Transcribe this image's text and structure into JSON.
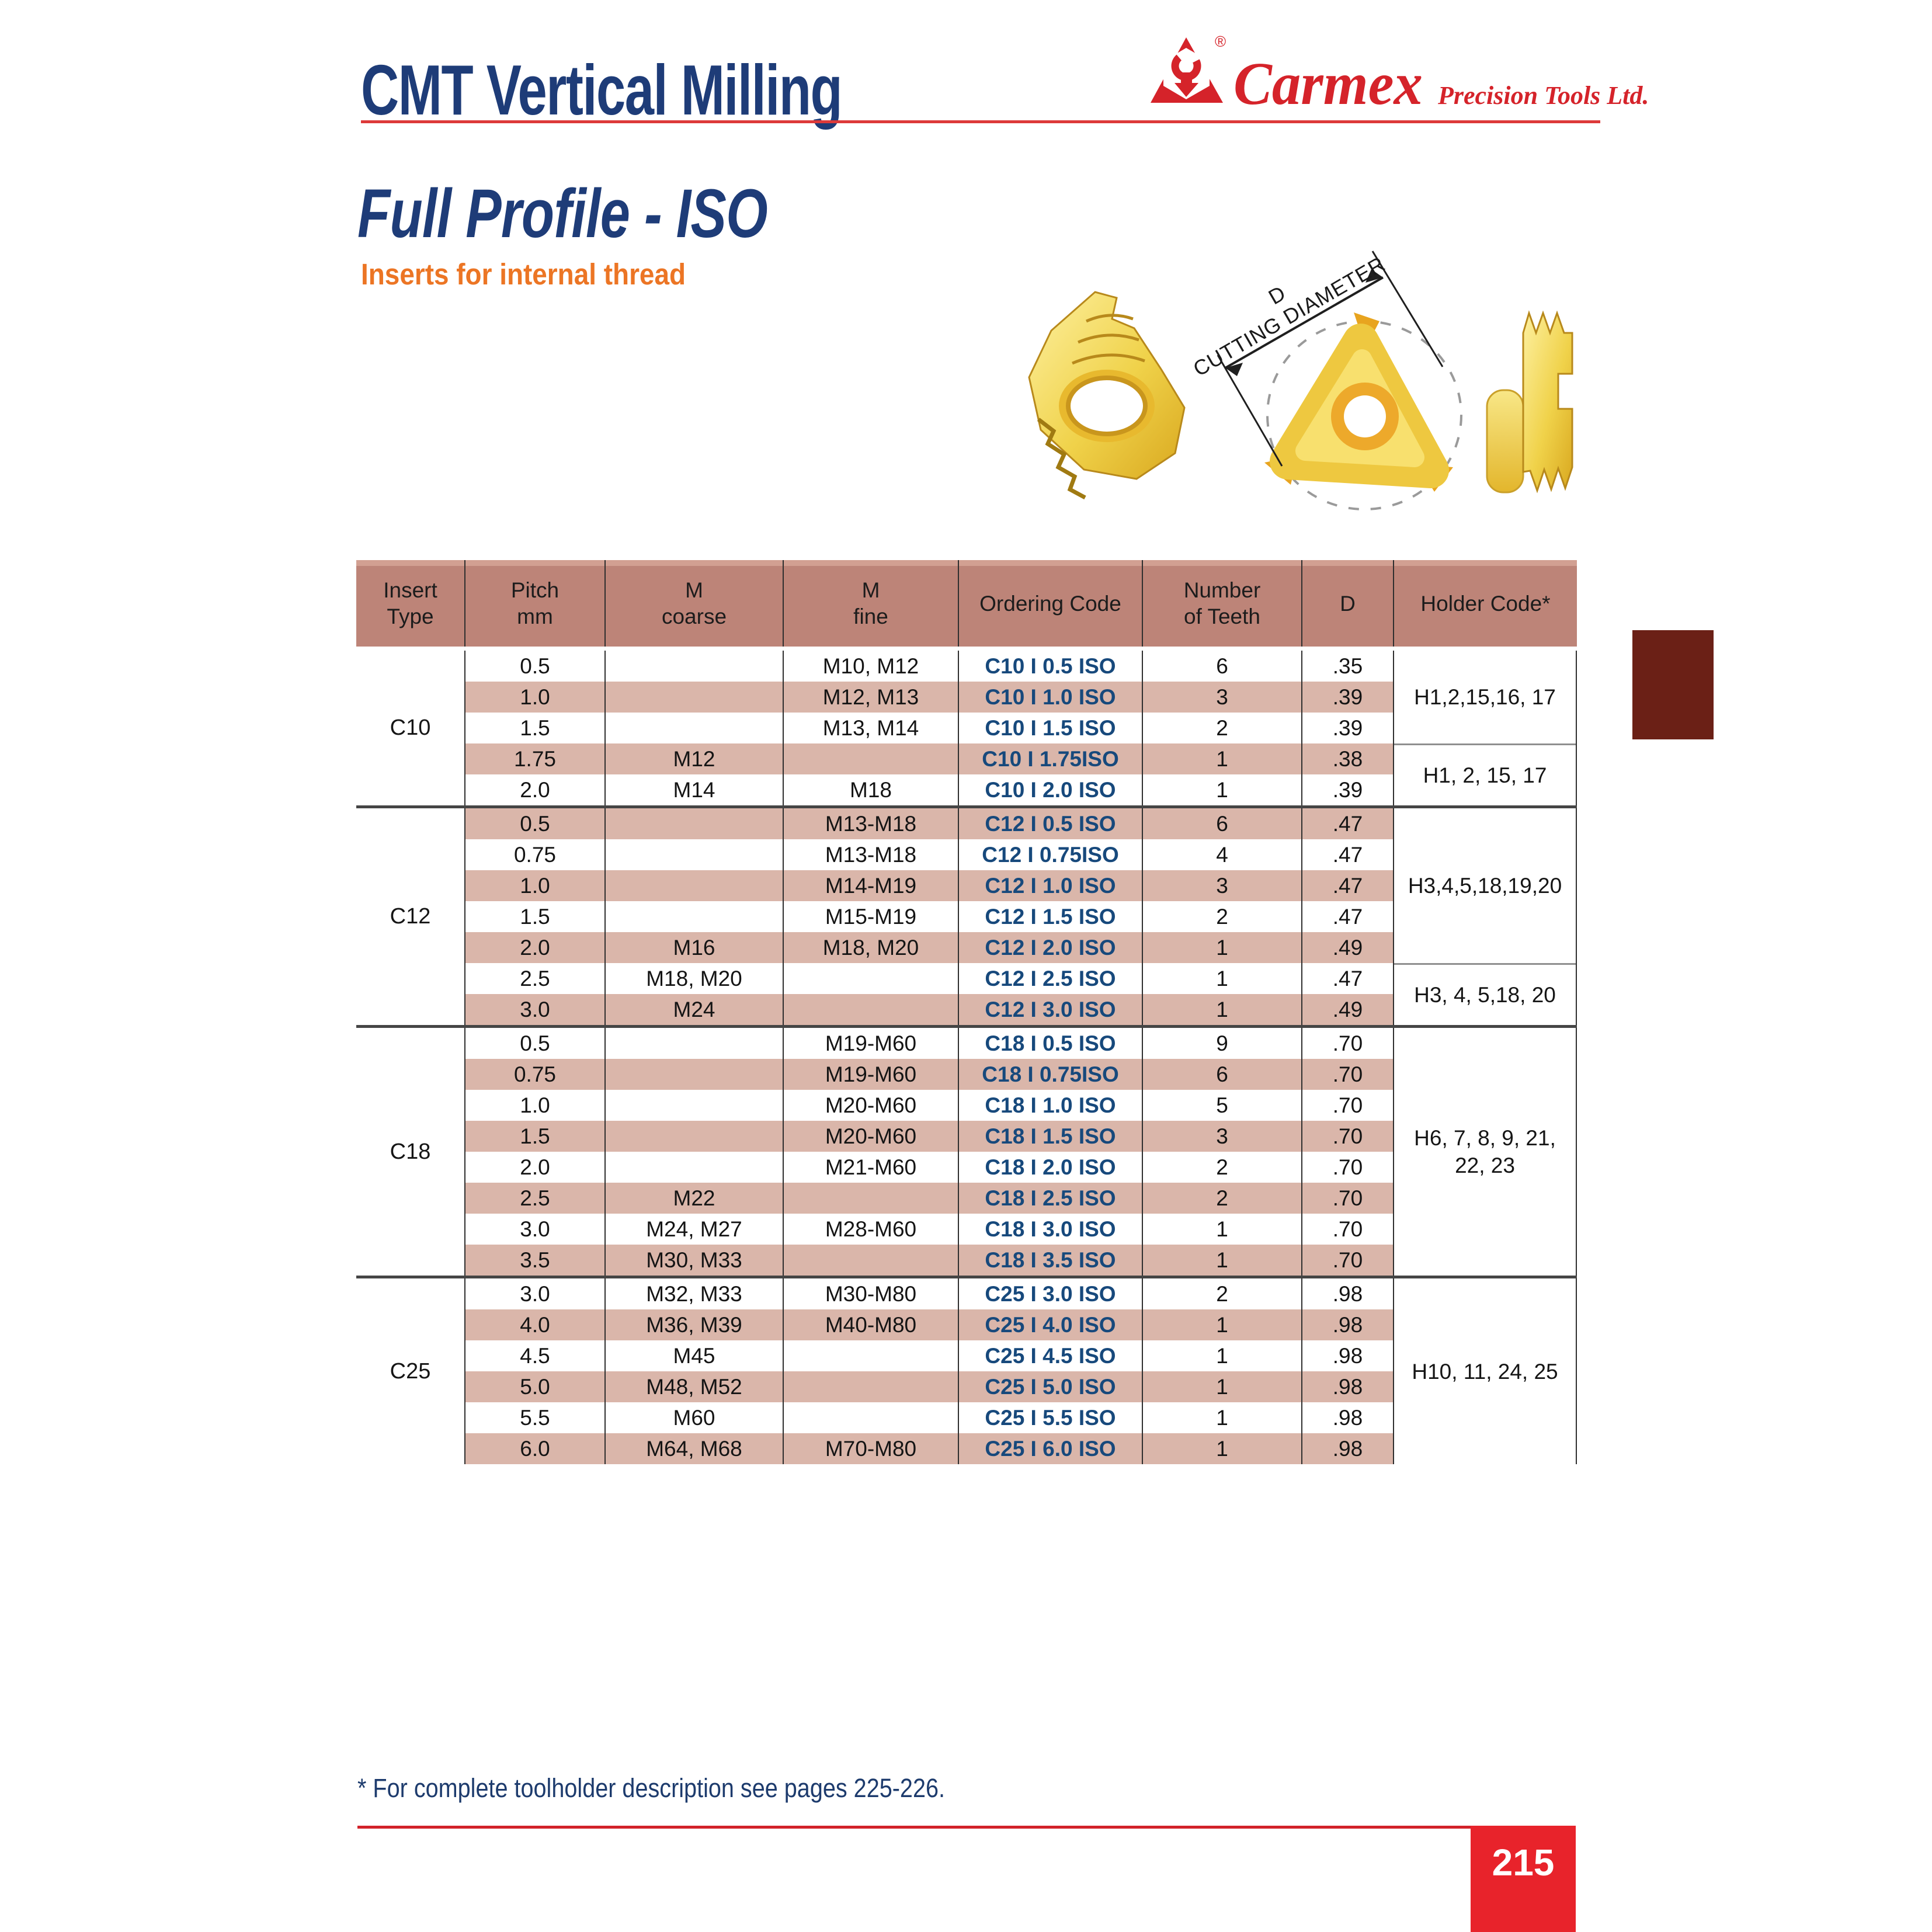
{
  "page": {
    "title": "CMT Vertical Milling"
  },
  "brand": {
    "name": "Carmex",
    "tagline": "Precision Tools Ltd.",
    "registered_mark": "®"
  },
  "hero": {
    "title": "Full Profile - ISO",
    "subtitle": "Inserts for internal thread"
  },
  "diagram": {
    "dim_letter": "D",
    "dim_label": "CUTTING DIAMETER"
  },
  "footer": {
    "footnote": "* For complete toolholder description see pages 225-226.",
    "page_number": "215"
  },
  "colors": {
    "navy": "#1e3c78",
    "orange": "#ec7524",
    "brand_red": "#d5232a",
    "header_bg": "#bd8478",
    "row_pink": "#dab6aa",
    "code_blue": "#17497c",
    "maroon_square": "#6b2016",
    "page_box_red": "#e8232b"
  },
  "table": {
    "headers": [
      [
        "Insert",
        "Type"
      ],
      [
        "Pitch",
        "mm"
      ],
      [
        "M",
        "coarse"
      ],
      [
        "M",
        "fine"
      ],
      [
        "Ordering Code"
      ],
      [
        "Number",
        "of Teeth"
      ],
      [
        "D"
      ],
      [
        "Holder Code*"
      ]
    ],
    "sections": [
      {
        "insert_type": "C10",
        "rows": [
          {
            "pitch": "0.5",
            "m_coarse": "",
            "m_fine": "M10, M12",
            "code": "C10 I 0.5  ISO",
            "teeth": "6",
            "d": ".35"
          },
          {
            "pitch": "1.0",
            "m_coarse": "",
            "m_fine": "M12, M13",
            "code": "C10 I 1.0  ISO",
            "teeth": "3",
            "d": ".39"
          },
          {
            "pitch": "1.5",
            "m_coarse": "",
            "m_fine": "M13, M14",
            "code": "C10 I 1.5  ISO",
            "teeth": "2",
            "d": ".39"
          },
          {
            "pitch": "1.75",
            "m_coarse": "M12",
            "m_fine": "",
            "code": "C10 I 1.75ISO",
            "teeth": "1",
            "d": ".38"
          },
          {
            "pitch": "2.0",
            "m_coarse": "M14",
            "m_fine": "M18",
            "code": "C10 I 2.0  ISO",
            "teeth": "1",
            "d": ".39"
          }
        ],
        "holder_groups": [
          {
            "rows": 3,
            "lines": [
              "H1,2,15,16, 17"
            ]
          },
          {
            "rows": 2,
            "lines": [
              "H1, 2, 15, 17"
            ]
          }
        ]
      },
      {
        "insert_type": "C12",
        "rows": [
          {
            "pitch": "0.5",
            "m_coarse": "",
            "m_fine": "M13-M18",
            "code": "C12 I 0.5  ISO",
            "teeth": "6",
            "d": ".47"
          },
          {
            "pitch": "0.75",
            "m_coarse": "",
            "m_fine": "M13-M18",
            "code": "C12 I 0.75ISO",
            "teeth": "4",
            "d": ".47"
          },
          {
            "pitch": "1.0",
            "m_coarse": "",
            "m_fine": "M14-M19",
            "code": "C12 I 1.0  ISO",
            "teeth": "3",
            "d": ".47"
          },
          {
            "pitch": "1.5",
            "m_coarse": "",
            "m_fine": "M15-M19",
            "code": "C12 I 1.5  ISO",
            "teeth": "2",
            "d": ".47"
          },
          {
            "pitch": "2.0",
            "m_coarse": "M16",
            "m_fine": "M18, M20",
            "code": "C12 I 2.0  ISO",
            "teeth": "1",
            "d": ".49"
          },
          {
            "pitch": "2.5",
            "m_coarse": "M18, M20",
            "m_fine": "",
            "code": "C12 I 2.5  ISO",
            "teeth": "1",
            "d": ".47"
          },
          {
            "pitch": "3.0",
            "m_coarse": "M24",
            "m_fine": "",
            "code": "C12 I 3.0  ISO",
            "teeth": "1",
            "d": ".49"
          }
        ],
        "holder_groups": [
          {
            "rows": 5,
            "lines": [
              "H3,4,5,18,19,20"
            ]
          },
          {
            "rows": 2,
            "lines": [
              "H3, 4, 5,18, 20"
            ]
          }
        ]
      },
      {
        "insert_type": "C18",
        "rows": [
          {
            "pitch": "0.5",
            "m_coarse": "",
            "m_fine": "M19-M60",
            "code": "C18 I 0.5  ISO",
            "teeth": "9",
            "d": ".70"
          },
          {
            "pitch": "0.75",
            "m_coarse": "",
            "m_fine": "M19-M60",
            "code": "C18 I 0.75ISO",
            "teeth": "6",
            "d": ".70"
          },
          {
            "pitch": "1.0",
            "m_coarse": "",
            "m_fine": "M20-M60",
            "code": "C18 I 1.0  ISO",
            "teeth": "5",
            "d": ".70"
          },
          {
            "pitch": "1.5",
            "m_coarse": "",
            "m_fine": "M20-M60",
            "code": "C18 I 1.5  ISO",
            "teeth": "3",
            "d": ".70"
          },
          {
            "pitch": "2.0",
            "m_coarse": "",
            "m_fine": "M21-M60",
            "code": "C18 I 2.0  ISO",
            "teeth": "2",
            "d": ".70"
          },
          {
            "pitch": "2.5",
            "m_coarse": "M22",
            "m_fine": "",
            "code": "C18 I 2.5  ISO",
            "teeth": "2",
            "d": ".70"
          },
          {
            "pitch": "3.0",
            "m_coarse": "M24, M27",
            "m_fine": "M28-M60",
            "code": "C18 I 3.0  ISO",
            "teeth": "1",
            "d": ".70"
          },
          {
            "pitch": "3.5",
            "m_coarse": "M30, M33",
            "m_fine": "",
            "code": "C18 I 3.5  ISO",
            "teeth": "1",
            "d": ".70"
          }
        ],
        "holder_groups": [
          {
            "rows": 8,
            "lines": [
              "H6, 7, 8, 9, 21,",
              "22, 23"
            ]
          }
        ]
      },
      {
        "insert_type": "C25",
        "rows": [
          {
            "pitch": "3.0",
            "m_coarse": "M32, M33",
            "m_fine": "M30-M80",
            "code": "C25 I 3.0  ISO",
            "teeth": "2",
            "d": ".98"
          },
          {
            "pitch": "4.0",
            "m_coarse": "M36, M39",
            "m_fine": "M40-M80",
            "code": "C25 I 4.0  ISO",
            "teeth": "1",
            "d": ".98"
          },
          {
            "pitch": "4.5",
            "m_coarse": "M45",
            "m_fine": "",
            "code": "C25 I 4.5  ISO",
            "teeth": "1",
            "d": ".98"
          },
          {
            "pitch": "5.0",
            "m_coarse": "M48, M52",
            "m_fine": "",
            "code": "C25 I 5.0  ISO",
            "teeth": "1",
            "d": ".98"
          },
          {
            "pitch": "5.5",
            "m_coarse": "M60",
            "m_fine": "",
            "code": "C25 I 5.5  ISO",
            "teeth": "1",
            "d": ".98"
          },
          {
            "pitch": "6.0",
            "m_coarse": "M64, M68",
            "m_fine": "M70-M80",
            "code": "C25 I 6.0  ISO",
            "teeth": "1",
            "d": ".98"
          }
        ],
        "holder_groups": [
          {
            "rows": 6,
            "lines": [
              "H10, 11, 24, 25"
            ]
          }
        ]
      }
    ]
  }
}
